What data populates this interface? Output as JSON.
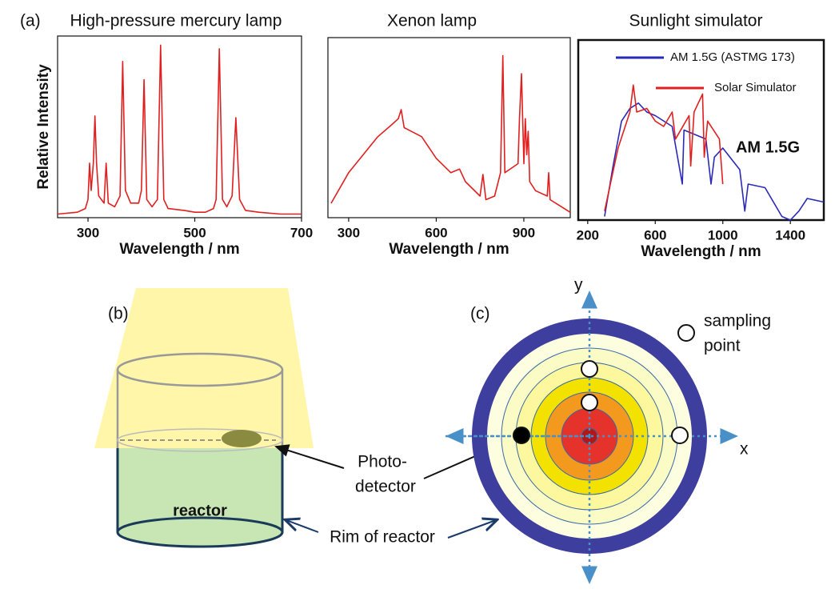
{
  "panel_a": {
    "label": "(a)"
  },
  "chart_data": [
    {
      "type": "line",
      "title": "High-pressure mercury lamp",
      "ylabel": "Relative Intensity",
      "xlabel": "Wavelength / nm",
      "xlim": [
        243,
        700
      ],
      "ylim": [
        0,
        1
      ],
      "xticks": [
        300,
        500,
        700
      ],
      "series": [
        {
          "color": "#e02020",
          "x": [
            243,
            280,
            295,
            300,
            303,
            306,
            310,
            313,
            316,
            320,
            330,
            334,
            338,
            350,
            360,
            365,
            370,
            380,
            395,
            400,
            405,
            410,
            420,
            430,
            436,
            442,
            450,
            480,
            500,
            520,
            535,
            540,
            546,
            552,
            560,
            570,
            577,
            584,
            595,
            620,
            660,
            700
          ],
          "values": [
            0.02,
            0.03,
            0.05,
            0.1,
            0.3,
            0.15,
            0.3,
            0.56,
            0.3,
            0.12,
            0.08,
            0.3,
            0.08,
            0.06,
            0.12,
            0.86,
            0.15,
            0.08,
            0.08,
            0.15,
            0.76,
            0.1,
            0.06,
            0.1,
            0.95,
            0.1,
            0.05,
            0.04,
            0.03,
            0.03,
            0.05,
            0.1,
            0.93,
            0.1,
            0.06,
            0.12,
            0.55,
            0.1,
            0.04,
            0.03,
            0.02,
            0.02
          ]
        }
      ]
    },
    {
      "type": "line",
      "title": "Xenon lamp",
      "xlabel": "Wavelength / nm",
      "xlim": [
        229,
        1059
      ],
      "ylim": [
        0,
        1
      ],
      "xticks": [
        300,
        600,
        900
      ],
      "series": [
        {
          "color": "#e02020",
          "x": [
            240,
            300,
            400,
            450,
            470,
            480,
            490,
            550,
            600,
            650,
            680,
            700,
            750,
            760,
            770,
            800,
            820,
            828,
            835,
            880,
            885,
            892,
            900,
            905,
            910,
            915,
            920,
            940,
            980,
            985,
            990,
            1059
          ],
          "values": [
            0.08,
            0.25,
            0.45,
            0.52,
            0.55,
            0.6,
            0.5,
            0.45,
            0.33,
            0.25,
            0.27,
            0.2,
            0.12,
            0.24,
            0.1,
            0.12,
            0.25,
            0.9,
            0.25,
            0.3,
            0.55,
            0.8,
            0.3,
            0.55,
            0.35,
            0.48,
            0.2,
            0.15,
            0.12,
            0.25,
            0.1,
            0.03
          ]
        }
      ]
    },
    {
      "type": "line",
      "title": "Sunlight simulator",
      "xlabel": "Wavelength / nm",
      "xlim": [
        144,
        1598
      ],
      "ylim": [
        0,
        1
      ],
      "xticks": [
        200,
        600,
        1000,
        1400
      ],
      "annotation": "AM 1.5G",
      "series": [
        {
          "name": "AM 1.5G (ASTMG 173)",
          "color": "#2a2ab8",
          "x": [
            300,
            350,
            400,
            450,
            500,
            550,
            600,
            700,
            760,
            770,
            900,
            930,
            950,
            1000,
            1100,
            1130,
            1150,
            1250,
            1350,
            1400,
            1450,
            1500,
            1598
          ],
          "values": [
            0.02,
            0.3,
            0.55,
            0.62,
            0.65,
            0.6,
            0.58,
            0.52,
            0.2,
            0.5,
            0.45,
            0.2,
            0.35,
            0.4,
            0.28,
            0.05,
            0.2,
            0.18,
            0.02,
            0,
            0.05,
            0.12,
            0.1
          ]
        },
        {
          "name": "Solar Simulator",
          "color": "#e02020",
          "x": [
            300,
            380,
            450,
            470,
            490,
            550,
            600,
            650,
            700,
            720,
            800,
            810,
            830,
            880,
            890,
            910,
            980,
            1000
          ],
          "values": [
            0.05,
            0.4,
            0.6,
            0.75,
            0.6,
            0.62,
            0.55,
            0.52,
            0.6,
            0.45,
            0.58,
            0.3,
            0.6,
            0.7,
            0.35,
            0.55,
            0.45,
            0.2
          ]
        }
      ]
    }
  ],
  "diagram_b": {
    "label": "(b)",
    "reactor": "reactor",
    "detector": [
      "Photo-",
      "detector"
    ],
    "rim": "Rim of reactor"
  },
  "diagram_c": {
    "label": "(c)",
    "y_axis": "y",
    "x_axis": "x",
    "legend": [
      "sampling",
      "point"
    ]
  }
}
